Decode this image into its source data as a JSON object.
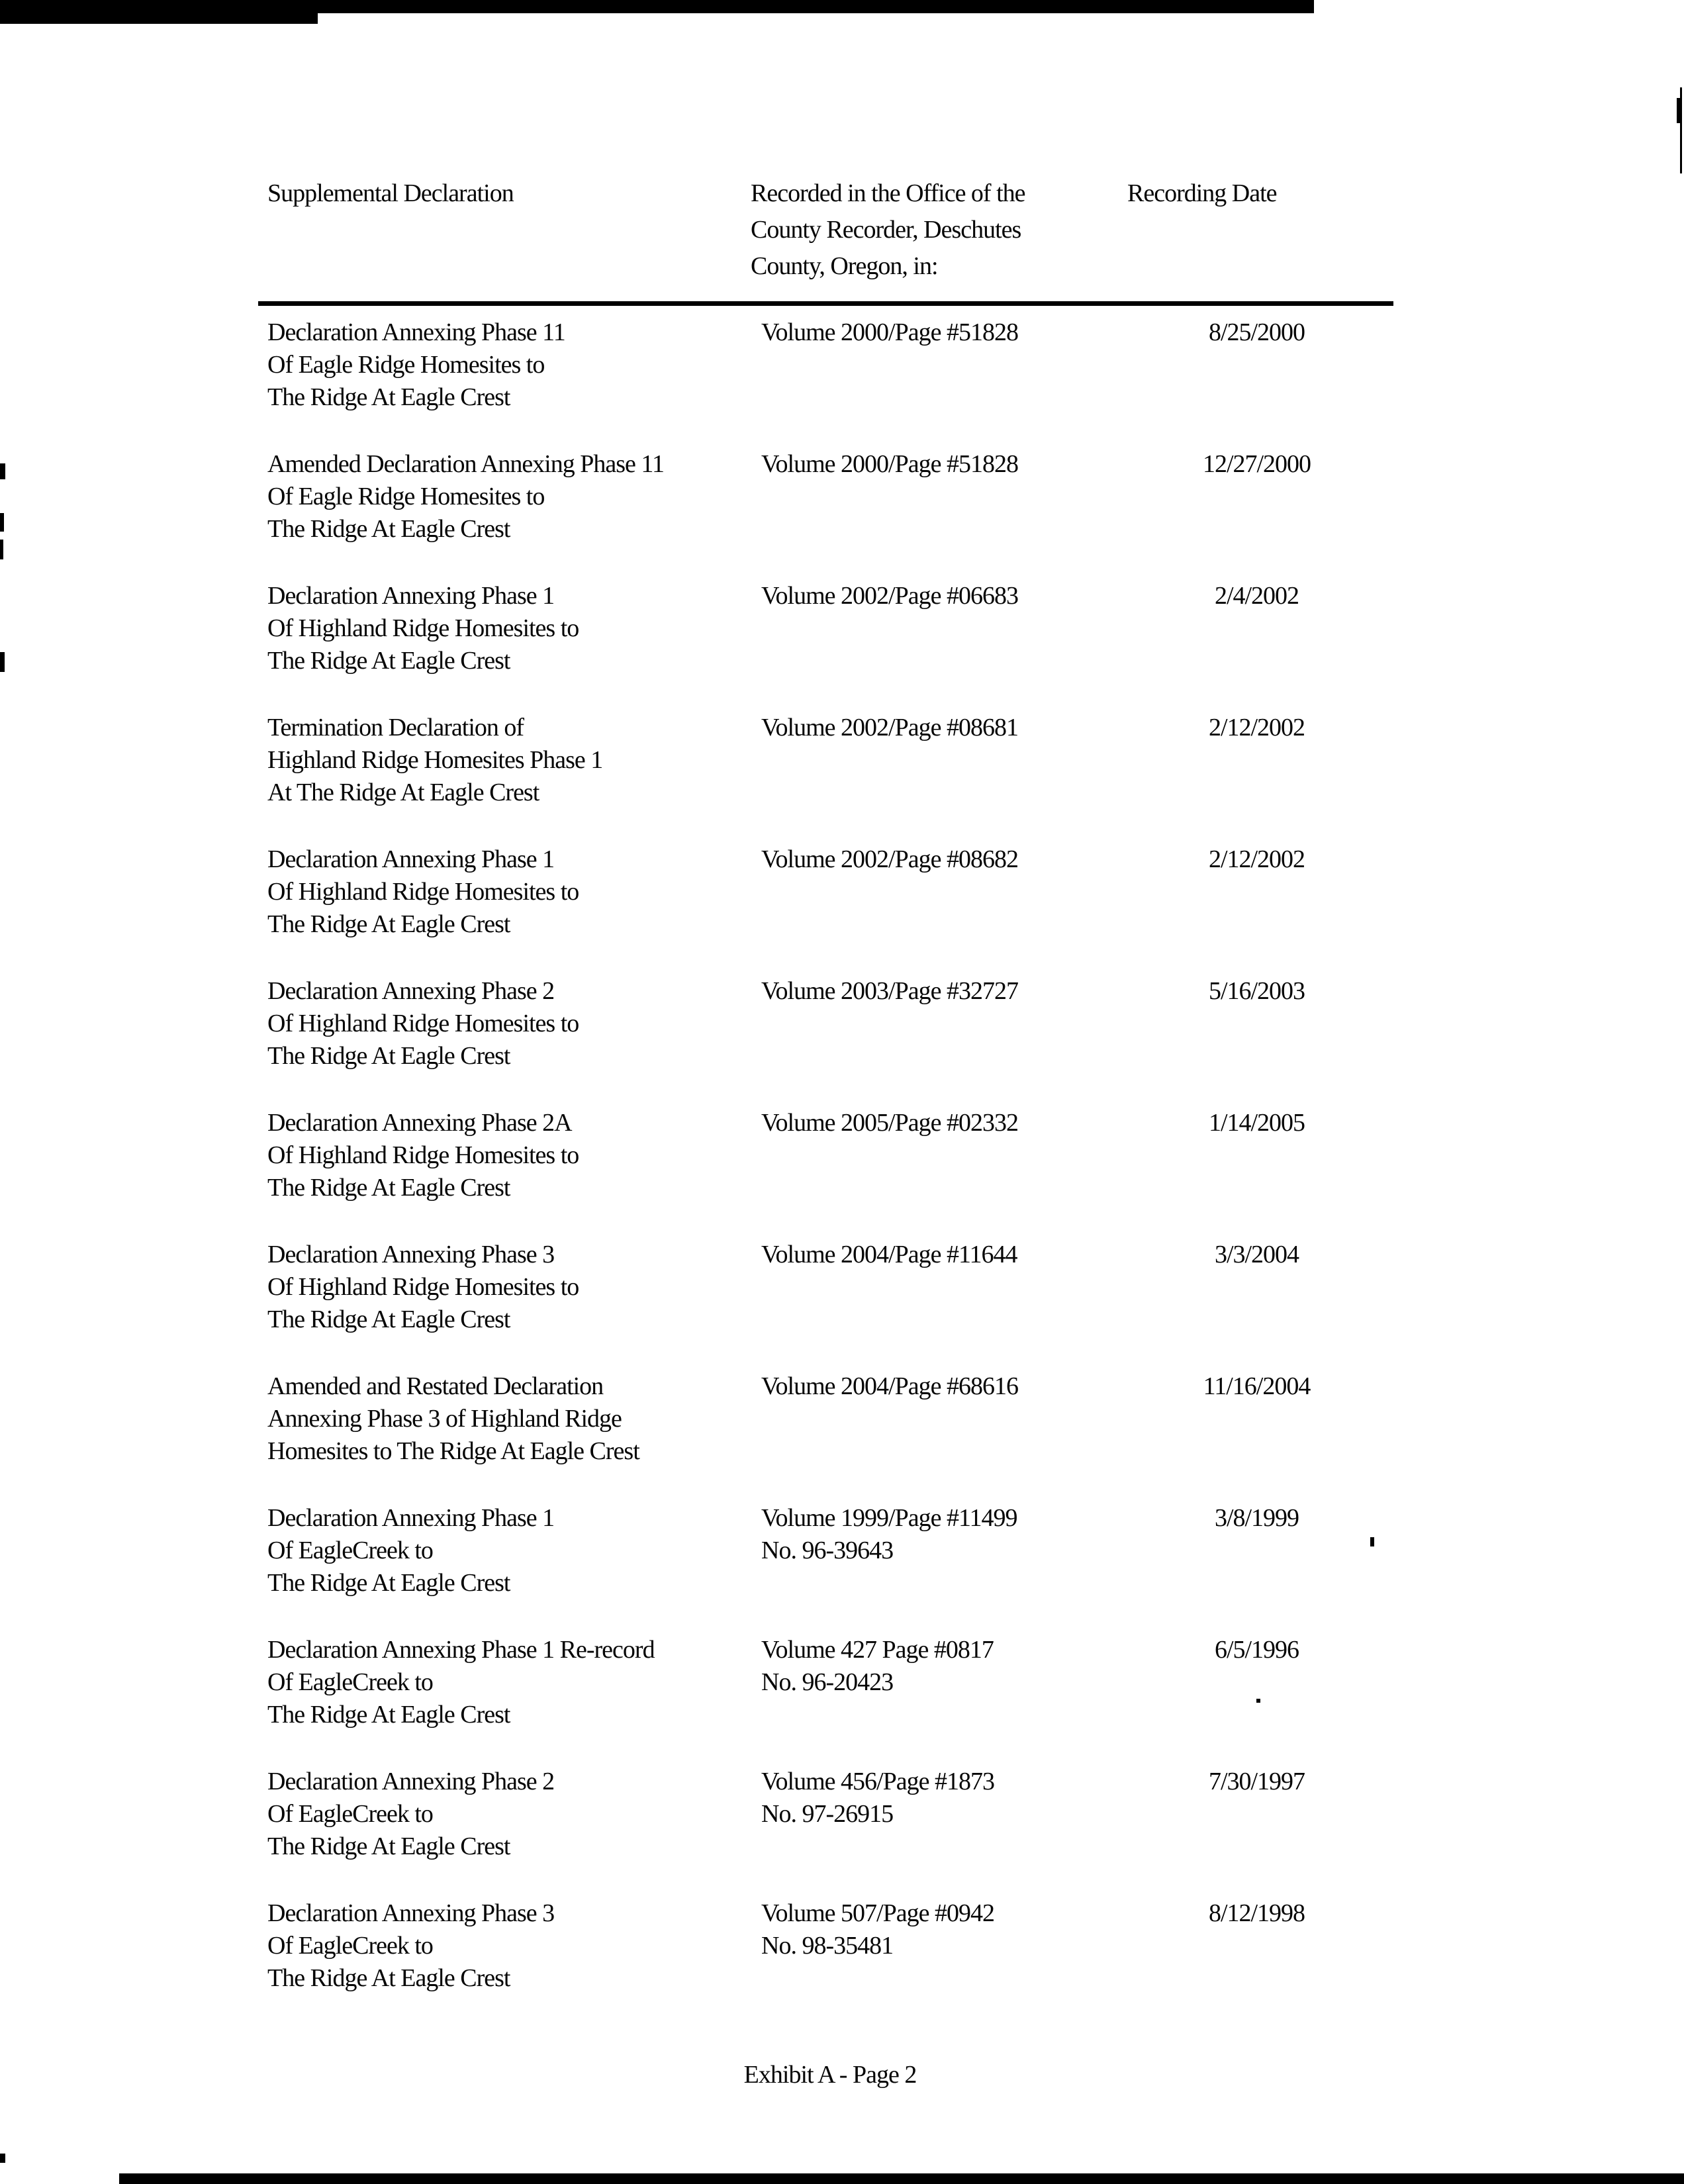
{
  "table": {
    "headers": {
      "col1": "Supplemental Declaration",
      "col2_lines": [
        "Recorded in the Office of the",
        "County Recorder, Deschutes",
        "County, Oregon, in:"
      ],
      "col3": "Recording Date"
    },
    "rows": [
      {
        "declaration_lines": [
          "Declaration Annexing Phase 11",
          "Of Eagle Ridge Homesites to",
          "The Ridge At Eagle Crest"
        ],
        "recorded_lines": [
          "Volume 2000/Page #51828"
        ],
        "date": "8/25/2000"
      },
      {
        "declaration_lines": [
          "Amended Declaration Annexing Phase 11",
          "Of Eagle Ridge Homesites to",
          "The Ridge At Eagle Crest"
        ],
        "recorded_lines": [
          "Volume 2000/Page #51828"
        ],
        "date": "12/27/2000"
      },
      {
        "declaration_lines": [
          "Declaration Annexing Phase 1",
          "Of Highland Ridge Homesites to",
          "The Ridge At Eagle Crest"
        ],
        "recorded_lines": [
          "Volume 2002/Page #06683"
        ],
        "date": "2/4/2002"
      },
      {
        "declaration_lines": [
          "Termination Declaration of",
          "Highland Ridge Homesites Phase 1",
          "At The Ridge At Eagle Crest"
        ],
        "recorded_lines": [
          "Volume 2002/Page #08681"
        ],
        "date": "2/12/2002"
      },
      {
        "declaration_lines": [
          "Declaration Annexing Phase 1",
          "Of Highland Ridge Homesites to",
          "The Ridge At Eagle Crest"
        ],
        "recorded_lines": [
          "Volume 2002/Page #08682"
        ],
        "date": "2/12/2002"
      },
      {
        "declaration_lines": [
          "Declaration Annexing Phase 2",
          "Of Highland Ridge Homesites to",
          "The Ridge At Eagle Crest"
        ],
        "recorded_lines": [
          "Volume 2003/Page #32727"
        ],
        "date": "5/16/2003"
      },
      {
        "declaration_lines": [
          "Declaration Annexing Phase 2A",
          "Of Highland Ridge Homesites to",
          "The Ridge At Eagle Crest"
        ],
        "recorded_lines": [
          "Volume 2005/Page #02332"
        ],
        "date": "1/14/2005"
      },
      {
        "declaration_lines": [
          "Declaration Annexing Phase 3",
          "Of Highland Ridge Homesites to",
          "The Ridge At Eagle Crest"
        ],
        "recorded_lines": [
          "Volume 2004/Page #11644"
        ],
        "date": "3/3/2004"
      },
      {
        "declaration_lines": [
          "Amended and Restated Declaration",
          "Annexing Phase 3 of Highland Ridge",
          "Homesites to The Ridge At Eagle Crest"
        ],
        "recorded_lines": [
          "Volume 2004/Page #68616"
        ],
        "date": "11/16/2004"
      },
      {
        "declaration_lines": [
          "Declaration Annexing Phase 1",
          "Of EagleCreek to",
          "The Ridge At Eagle Crest"
        ],
        "recorded_lines": [
          "Volume 1999/Page #11499",
          "No. 96-39643"
        ],
        "date": "3/8/1999"
      },
      {
        "declaration_lines": [
          "Declaration Annexing Phase 1 Re-record",
          "Of EagleCreek to",
          "The Ridge At Eagle Crest"
        ],
        "recorded_lines": [
          "Volume 427 Page #0817",
          "No. 96-20423"
        ],
        "date": "6/5/1996"
      },
      {
        "declaration_lines": [
          "Declaration Annexing Phase 2",
          "Of EagleCreek to",
          "The Ridge At Eagle Crest"
        ],
        "recorded_lines": [
          "Volume 456/Page #1873",
          "No. 97-26915"
        ],
        "date": "7/30/1997"
      },
      {
        "declaration_lines": [
          "Declaration Annexing Phase 3",
          "Of EagleCreek to",
          "The Ridge At Eagle Crest"
        ],
        "recorded_lines": [
          "Volume 507/Page #0942",
          "No. 98-35481"
        ],
        "date": "8/12/1998"
      }
    ]
  },
  "footer": {
    "text": "Exhibit A - Page 2"
  }
}
